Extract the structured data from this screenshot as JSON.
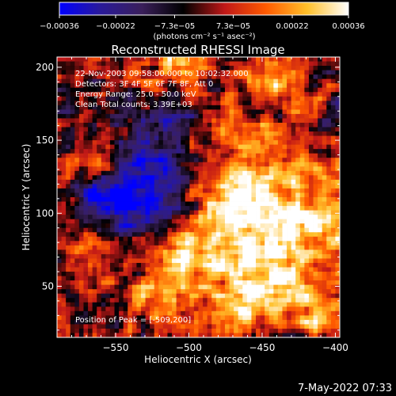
{
  "chart_data": {
    "type": "heatmap",
    "title": "Reconstructed RHESSI Image",
    "xlabel": "Heliocentric X (arcsec)",
    "ylabel": "Heliocentric Y (arcsec)",
    "xlim": [
      -590,
      -397
    ],
    "ylim": [
      15,
      207
    ],
    "x_ticks": [
      -550,
      -500,
      -450,
      -400
    ],
    "x_tick_labels": [
      "−550",
      "−500",
      "−450",
      "−400"
    ],
    "y_ticks": [
      50,
      100,
      150,
      200
    ],
    "y_tick_labels": [
      "50",
      "100",
      "150",
      "200"
    ],
    "colorbar": {
      "range": [
        -0.00036,
        0.00036
      ],
      "ticks": [
        -0.00036,
        -0.00022,
        -7.3e-05,
        7.3e-05,
        0.00022,
        0.00036
      ],
      "tick_labels": [
        "−0.00036",
        "−0.00022",
        "−7.3e−05",
        "7.3e−05",
        "0.00022",
        "0.00036"
      ],
      "units": "(photons cm⁻² s⁻¹ asec⁻²)",
      "colors": [
        "#0000ff",
        "#2a1a99",
        "#3a1f5a",
        "#000000",
        "#c01818",
        "#ff5a00",
        "#ffc02a",
        "#ffffff"
      ]
    },
    "grid": false,
    "annotations": [
      "22-Nov-2003 09:58:00.000 to 10:02:32.000",
      "Detectors: 3F 4F 5F 6F 7F 8F, Att 0",
      "Energy Range: 25.0 - 50.0 keV",
      "Clean     Total counts: 3.39E+03",
      "Position of Peak = [-509,200]"
    ],
    "sources": [
      {
        "x": -420,
        "y": 100,
        "amp": 1.0,
        "r": 22
      },
      {
        "x": -470,
        "y": 110,
        "amp": 0.8,
        "r": 18
      },
      {
        "x": -475,
        "y": 75,
        "amp": 0.7,
        "r": 20
      },
      {
        "x": -440,
        "y": 55,
        "amp": 0.85,
        "r": 18
      },
      {
        "x": -510,
        "y": 200,
        "amp": 0.75,
        "r": 12
      },
      {
        "x": -560,
        "y": 140,
        "amp": 0.65,
        "r": 10
      },
      {
        "x": -440,
        "y": 195,
        "amp": 0.55,
        "r": 15
      },
      {
        "x": -510,
        "y": 75,
        "amp": 0.6,
        "r": 14
      },
      {
        "x": -565,
        "y": 75,
        "amp": 0.6,
        "r": 14
      },
      {
        "x": -520,
        "y": 40,
        "amp": 0.5,
        "r": 18
      },
      {
        "x": -470,
        "y": 30,
        "amp": 0.6,
        "r": 15
      },
      {
        "x": -410,
        "y": 30,
        "amp": 0.45,
        "r": 12
      },
      {
        "x": -530,
        "y": 110,
        "amp": -0.85,
        "r": 24
      },
      {
        "x": -560,
        "y": 108,
        "amp": -0.6,
        "r": 14
      },
      {
        "x": -520,
        "y": 160,
        "amp": -0.45,
        "r": 20
      },
      {
        "x": -460,
        "y": 150,
        "amp": 0.35,
        "r": 20
      }
    ],
    "noise_amp": 0.45
  },
  "footer": {
    "timestamp": "7-May-2022 07:33"
  }
}
